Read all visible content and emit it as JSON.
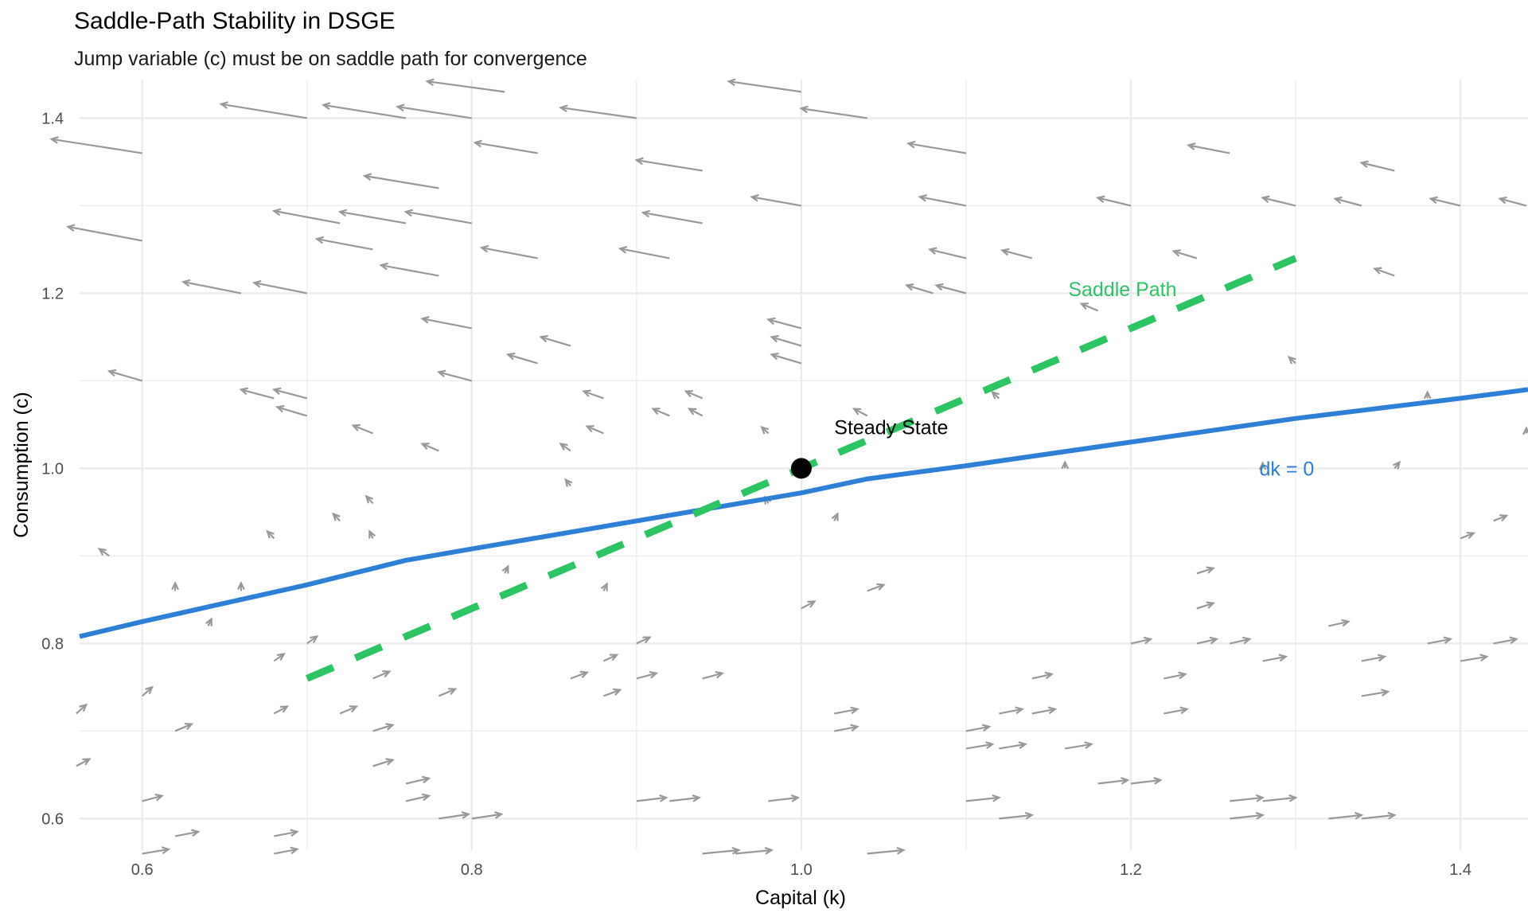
{
  "chart_data": {
    "type": "line",
    "title": "Saddle-Path Stability in DSGE",
    "subtitle": "Jump variable (c) must be on saddle path for convergence",
    "xlabel": "Capital (k)",
    "ylabel": "Consumption (c)",
    "xlim": [
      0.562,
      1.441
    ],
    "ylim": [
      0.564,
      1.444
    ],
    "x_ticks": [
      0.6,
      0.8,
      1.0,
      1.2,
      1.4
    ],
    "x_tick_labels": [
      "0.6",
      "0.8",
      "1.0",
      "1.2",
      "1.4"
    ],
    "y_ticks": [
      0.6,
      0.8,
      1.0,
      1.2,
      1.4
    ],
    "y_tick_labels": [
      "0.6",
      "0.8",
      "1.0",
      "1.2",
      "1.4"
    ],
    "x_minor_ticks": [
      0.7,
      0.9,
      1.1,
      1.3
    ],
    "y_minor_ticks": [
      0.7,
      0.9,
      1.1,
      1.3
    ],
    "grid": true,
    "legend": "none",
    "series": [
      {
        "name": "dk = 0",
        "style": "solid",
        "color": "#2E7FD6",
        "points": [
          [
            0.562,
            0.808
          ],
          [
            0.6,
            0.825
          ],
          [
            0.7,
            0.867
          ],
          [
            0.76,
            0.895
          ],
          [
            0.8,
            0.908
          ],
          [
            0.9,
            0.94
          ],
          [
            1.0,
            0.972
          ],
          [
            1.04,
            0.988
          ],
          [
            1.1,
            1.003
          ],
          [
            1.2,
            1.03
          ],
          [
            1.3,
            1.057
          ],
          [
            1.4,
            1.08
          ],
          [
            1.441,
            1.09
          ]
        ]
      },
      {
        "name": "Saddle Path",
        "style": "dashed",
        "color": "#2DC464",
        "points": [
          [
            0.7,
            0.76
          ],
          [
            1.0,
            1.0
          ],
          [
            1.3,
            1.24
          ]
        ]
      }
    ],
    "points": [
      {
        "name": "Steady State",
        "x": 1.0,
        "y": 1.0,
        "color": "#000000"
      }
    ],
    "annotations": [
      {
        "text": "Saddle Path",
        "x": 1.162,
        "y": 1.205,
        "color": "#2DC464"
      },
      {
        "text": "dk = 0",
        "x": 1.278,
        "y": 1.0,
        "color": "#2E7FD6"
      },
      {
        "text": "Steady State",
        "x": 1.02,
        "y": 1.047,
        "color": "#000000"
      }
    ],
    "vector_field": {
      "color": "#999999",
      "arrows": [
        [
          0.6,
          1.36,
          -0.055,
          0.016
        ],
        [
          0.578,
          1.32,
          0.0,
          0.0
        ],
        [
          0.6,
          1.26,
          -0.045,
          0.016
        ],
        [
          0.66,
          1.2,
          -0.035,
          0.013
        ],
        [
          0.7,
          1.4,
          -0.052,
          0.016
        ],
        [
          0.7,
          1.2,
          -0.032,
          0.012
        ],
        [
          0.72,
          1.28,
          -0.04,
          0.014
        ],
        [
          0.74,
          1.25,
          -0.034,
          0.012
        ],
        [
          0.76,
          1.4,
          -0.05,
          0.015
        ],
        [
          0.78,
          1.32,
          -0.045,
          0.014
        ],
        [
          0.76,
          1.28,
          -0.04,
          0.013
        ],
        [
          0.8,
          1.28,
          -0.04,
          0.013
        ],
        [
          0.78,
          1.22,
          -0.035,
          0.012
        ],
        [
          0.8,
          1.4,
          -0.045,
          0.013
        ],
        [
          0.8,
          1.16,
          -0.03,
          0.011
        ],
        [
          0.84,
          1.36,
          -0.038,
          0.012
        ],
        [
          0.82,
          1.43,
          -0.047,
          0.012
        ],
        [
          0.9,
          1.4,
          -0.046,
          0.012
        ],
        [
          0.8,
          1.1,
          -0.02,
          0.01
        ],
        [
          0.6,
          1.1,
          -0.02,
          0.011
        ],
        [
          0.74,
          1.12,
          0.0,
          0.0
        ],
        [
          0.68,
          1.08,
          -0.02,
          0.01
        ],
        [
          0.7,
          1.08,
          -0.02,
          0.01
        ],
        [
          0.7,
          1.06,
          -0.018,
          0.01
        ],
        [
          0.74,
          1.04,
          -0.012,
          0.009
        ],
        [
          0.78,
          1.02,
          -0.01,
          0.008
        ],
        [
          0.84,
          1.24,
          -0.034,
          0.012
        ],
        [
          0.84,
          1.12,
          -0.018,
          0.01
        ],
        [
          0.86,
          1.14,
          -0.018,
          0.01
        ],
        [
          0.88,
          1.08,
          -0.012,
          0.008
        ],
        [
          0.88,
          1.04,
          -0.01,
          0.008
        ],
        [
          0.86,
          1.02,
          -0.006,
          0.008
        ],
        [
          0.86,
          0.98,
          -0.003,
          0.007
        ],
        [
          0.74,
          0.96,
          -0.004,
          0.008
        ],
        [
          0.72,
          0.94,
          -0.004,
          0.008
        ],
        [
          0.74,
          0.92,
          -0.002,
          0.008
        ],
        [
          0.68,
          0.92,
          -0.004,
          0.008
        ],
        [
          0.58,
          0.9,
          -0.006,
          0.008
        ],
        [
          0.62,
          0.86,
          0.0,
          0.009
        ],
        [
          0.66,
          0.86,
          0.0,
          0.009
        ],
        [
          0.64,
          0.82,
          0.002,
          0.008
        ],
        [
          0.92,
          1.24,
          -0.03,
          0.011
        ],
        [
          0.94,
          1.28,
          -0.036,
          0.012
        ],
        [
          0.94,
          1.34,
          -0.04,
          0.012
        ],
        [
          1.0,
          1.43,
          -0.044,
          0.012
        ],
        [
          1.04,
          1.4,
          -0.04,
          0.011
        ],
        [
          1.0,
          1.3,
          -0.03,
          0.01
        ],
        [
          0.92,
          1.06,
          -0.01,
          0.008
        ],
        [
          0.94,
          1.08,
          -0.01,
          0.008
        ],
        [
          0.94,
          1.06,
          -0.008,
          0.008
        ],
        [
          0.98,
          1.04,
          -0.004,
          0.007
        ],
        [
          1.0,
          1.16,
          -0.02,
          0.01
        ],
        [
          1.0,
          1.14,
          -0.018,
          0.01
        ],
        [
          1.0,
          1.12,
          -0.018,
          0.01
        ],
        [
          1.04,
          1.06,
          -0.008,
          0.008
        ],
        [
          1.1,
          1.36,
          -0.035,
          0.011
        ],
        [
          1.1,
          1.3,
          -0.028,
          0.01
        ],
        [
          1.1,
          1.24,
          -0.022,
          0.01
        ],
        [
          1.1,
          1.2,
          -0.018,
          0.009
        ],
        [
          1.08,
          1.2,
          -0.016,
          0.009
        ],
        [
          1.14,
          1.24,
          -0.018,
          0.009
        ],
        [
          1.18,
          1.18,
          -0.01,
          0.008
        ],
        [
          1.2,
          1.3,
          -0.02,
          0.009
        ],
        [
          1.24,
          1.24,
          -0.014,
          0.008
        ],
        [
          1.26,
          1.36,
          -0.025,
          0.009
        ],
        [
          1.3,
          1.3,
          -0.02,
          0.009
        ],
        [
          1.34,
          1.3,
          -0.016,
          0.008
        ],
        [
          1.36,
          1.34,
          -0.02,
          0.009
        ],
        [
          1.36,
          1.22,
          -0.012,
          0.008
        ],
        [
          1.4,
          1.3,
          -0.018,
          0.008
        ],
        [
          1.44,
          1.3,
          -0.016,
          0.008
        ],
        [
          1.3,
          1.12,
          -0.004,
          0.007
        ],
        [
          1.12,
          1.08,
          -0.004,
          0.007
        ],
        [
          1.38,
          1.08,
          0.0,
          0.007
        ],
        [
          1.44,
          1.04,
          0.0,
          0.006
        ],
        [
          1.16,
          1.0,
          0.0,
          0.007
        ],
        [
          1.28,
          1.0,
          0.0,
          0.006
        ],
        [
          1.36,
          1.0,
          0.003,
          0.007
        ],
        [
          0.98,
          0.96,
          -0.002,
          0.007
        ],
        [
          1.02,
          0.94,
          0.002,
          0.008
        ],
        [
          0.82,
          0.88,
          0.002,
          0.008
        ],
        [
          0.88,
          0.86,
          0.002,
          0.008
        ],
        [
          1.0,
          0.84,
          0.008,
          0.008
        ],
        [
          1.04,
          0.86,
          0.01,
          0.007
        ],
        [
          0.6,
          0.74,
          0.006,
          0.01
        ],
        [
          0.56,
          0.72,
          0.006,
          0.01
        ],
        [
          0.56,
          0.66,
          0.008,
          0.008
        ],
        [
          0.62,
          0.7,
          0.01,
          0.008
        ],
        [
          0.68,
          0.78,
          0.006,
          0.008
        ],
        [
          0.7,
          0.8,
          0.006,
          0.008
        ],
        [
          0.68,
          0.72,
          0.008,
          0.008
        ],
        [
          0.72,
          0.72,
          0.01,
          0.008
        ],
        [
          0.74,
          0.76,
          0.01,
          0.008
        ],
        [
          0.74,
          0.7,
          0.012,
          0.007
        ],
        [
          0.74,
          0.66,
          0.012,
          0.007
        ],
        [
          0.78,
          0.74,
          0.01,
          0.008
        ],
        [
          0.76,
          0.64,
          0.014,
          0.006
        ],
        [
          0.76,
          0.62,
          0.014,
          0.006
        ],
        [
          0.78,
          0.6,
          0.018,
          0.005
        ],
        [
          0.8,
          0.6,
          0.018,
          0.005
        ],
        [
          0.6,
          0.62,
          0.012,
          0.006
        ],
        [
          0.6,
          0.56,
          0.016,
          0.005
        ],
        [
          0.62,
          0.58,
          0.014,
          0.005
        ],
        [
          0.68,
          0.58,
          0.014,
          0.005
        ],
        [
          0.68,
          0.56,
          0.014,
          0.005
        ],
        [
          0.86,
          0.76,
          0.01,
          0.007
        ],
        [
          0.88,
          0.74,
          0.01,
          0.007
        ],
        [
          0.88,
          0.78,
          0.008,
          0.007
        ],
        [
          0.9,
          0.8,
          0.008,
          0.007
        ],
        [
          0.9,
          0.76,
          0.012,
          0.006
        ],
        [
          0.94,
          0.76,
          0.012,
          0.006
        ],
        [
          0.9,
          0.62,
          0.018,
          0.004
        ],
        [
          0.92,
          0.62,
          0.018,
          0.004
        ],
        [
          0.98,
          0.62,
          0.018,
          0.004
        ],
        [
          0.94,
          0.56,
          0.022,
          0.004
        ],
        [
          0.96,
          0.56,
          0.022,
          0.004
        ],
        [
          1.04,
          0.56,
          0.022,
          0.004
        ],
        [
          1.02,
          0.72,
          0.014,
          0.005
        ],
        [
          1.02,
          0.7,
          0.014,
          0.005
        ],
        [
          1.1,
          0.7,
          0.014,
          0.005
        ],
        [
          1.1,
          0.68,
          0.016,
          0.005
        ],
        [
          1.12,
          0.68,
          0.016,
          0.005
        ],
        [
          1.12,
          0.72,
          0.014,
          0.005
        ],
        [
          1.14,
          0.72,
          0.014,
          0.005
        ],
        [
          1.14,
          0.76,
          0.012,
          0.005
        ],
        [
          1.16,
          0.68,
          0.016,
          0.005
        ],
        [
          1.1,
          0.62,
          0.02,
          0.004
        ],
        [
          1.12,
          0.6,
          0.02,
          0.004
        ],
        [
          1.18,
          0.64,
          0.018,
          0.004
        ],
        [
          1.2,
          0.64,
          0.018,
          0.004
        ],
        [
          1.2,
          0.8,
          0.012,
          0.005
        ],
        [
          1.22,
          0.76,
          0.013,
          0.005
        ],
        [
          1.22,
          0.72,
          0.014,
          0.005
        ],
        [
          1.24,
          0.88,
          0.01,
          0.006
        ],
        [
          1.24,
          0.84,
          0.01,
          0.006
        ],
        [
          1.24,
          0.8,
          0.012,
          0.005
        ],
        [
          1.26,
          0.8,
          0.012,
          0.005
        ],
        [
          1.26,
          0.62,
          0.02,
          0.004
        ],
        [
          1.28,
          0.62,
          0.02,
          0.004
        ],
        [
          1.26,
          0.6,
          0.02,
          0.004
        ],
        [
          1.28,
          0.78,
          0.014,
          0.005
        ],
        [
          1.32,
          0.82,
          0.012,
          0.005
        ],
        [
          1.32,
          0.6,
          0.02,
          0.004
        ],
        [
          1.34,
          0.6,
          0.02,
          0.004
        ],
        [
          1.34,
          0.78,
          0.014,
          0.005
        ],
        [
          1.34,
          0.74,
          0.016,
          0.005
        ],
        [
          1.38,
          0.8,
          0.014,
          0.005
        ],
        [
          1.4,
          0.78,
          0.016,
          0.005
        ],
        [
          1.4,
          0.92,
          0.008,
          0.006
        ],
        [
          1.42,
          0.94,
          0.008,
          0.006
        ],
        [
          1.42,
          0.8,
          0.014,
          0.005
        ]
      ]
    }
  }
}
